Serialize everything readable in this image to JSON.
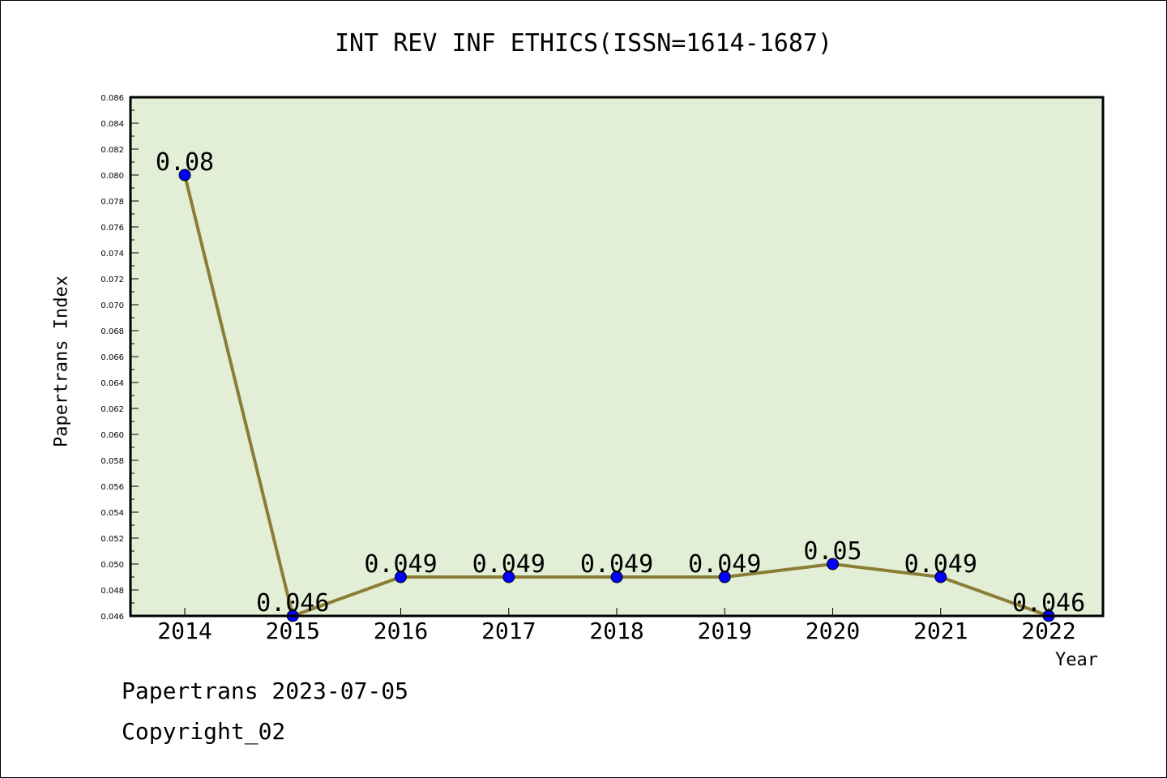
{
  "chart_data": {
    "type": "line",
    "title": "INT REV INF ETHICS(ISSN=1614-1687)",
    "xlabel": "Year",
    "ylabel": "Papertrans Index",
    "categories": [
      "2014",
      "2015",
      "2016",
      "2017",
      "2018",
      "2019",
      "2020",
      "2021",
      "2022"
    ],
    "values": [
      0.08,
      0.046,
      0.049,
      0.049,
      0.049,
      0.049,
      0.05,
      0.049,
      0.046
    ],
    "data_labels": [
      "0.08",
      "0.046",
      "0.049",
      "0.049",
      "0.049",
      "0.049",
      "0.05",
      "0.049",
      "0.046"
    ],
    "ylim": [
      0.046,
      0.086
    ],
    "yticks": [
      "0.046",
      "0.048",
      "0.050",
      "0.052",
      "0.054",
      "0.056",
      "0.058",
      "0.060",
      "0.062",
      "0.064",
      "0.066",
      "0.068",
      "0.070",
      "0.072",
      "0.074",
      "0.076",
      "0.078",
      "0.080",
      "0.082",
      "0.084",
      "0.086"
    ],
    "grid": false,
    "colors": {
      "plot_background": "#e2efd6",
      "line": "#8b7d35",
      "marker": "#0000ff"
    }
  },
  "footer": {
    "line1": "Papertrans 2023-07-05",
    "line2": "Copyright_02"
  }
}
